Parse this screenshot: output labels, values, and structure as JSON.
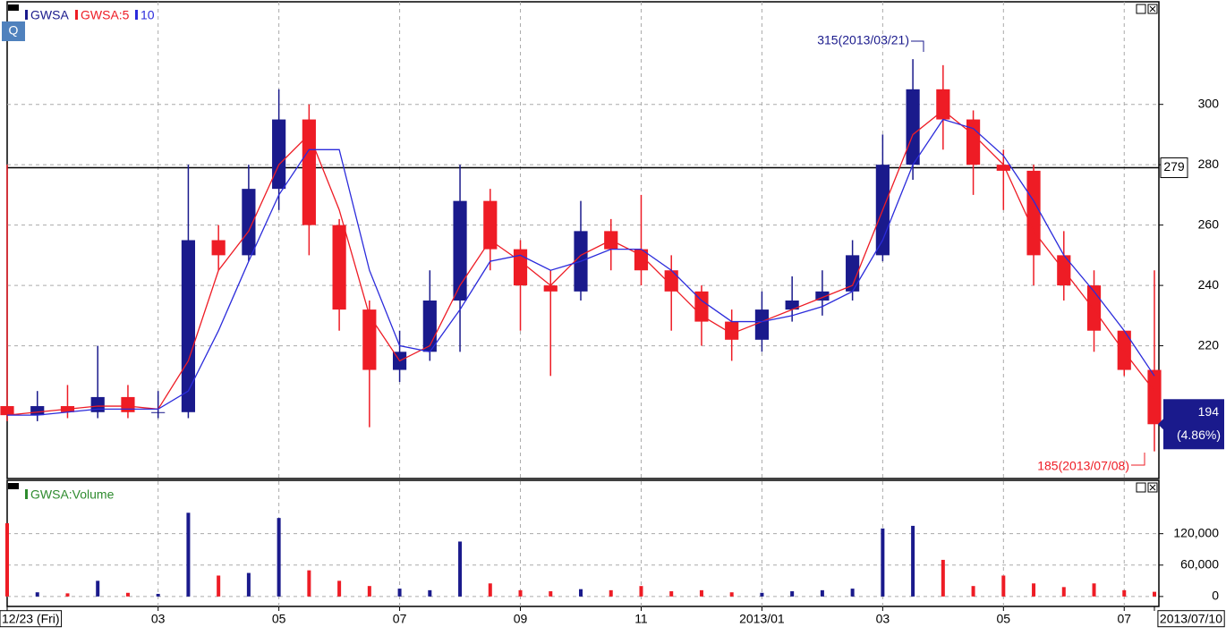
{
  "chart_data": [
    {
      "type": "candlestick",
      "name": "GWSA",
      "up_color": "#1a1a8c",
      "down_color": "#ee1c25",
      "categories": [
        "12/23 (Fri)",
        null,
        null,
        null,
        null,
        "03",
        null,
        null,
        null,
        "05",
        null,
        null,
        null,
        "07",
        null,
        null,
        null,
        "09",
        null,
        null,
        null,
        "11",
        null,
        null,
        null,
        "2013/01",
        null,
        null,
        null,
        "03",
        null,
        null,
        null,
        "05",
        null,
        null,
        null,
        "07",
        "2013/07/10"
      ],
      "open": [
        200,
        197,
        200,
        198,
        203,
        198,
        198,
        255,
        250,
        272,
        295,
        260,
        232,
        212,
        218,
        235,
        268,
        252,
        240,
        238,
        258,
        252,
        245,
        238,
        228,
        222,
        232,
        235,
        238,
        250,
        280,
        305,
        295,
        280,
        278,
        250,
        240,
        225,
        212
      ],
      "high": [
        280,
        205,
        207,
        220,
        207,
        205,
        280,
        260,
        280,
        305,
        300,
        262,
        235,
        225,
        245,
        280,
        272,
        255,
        245,
        268,
        262,
        270,
        250,
        240,
        232,
        238,
        243,
        245,
        255,
        290,
        315,
        313,
        298,
        285,
        280,
        258,
        245,
        225,
        245
      ],
      "low": [
        195,
        195,
        196,
        196,
        196,
        196,
        196,
        245,
        248,
        265,
        250,
        225,
        193,
        208,
        215,
        218,
        245,
        225,
        210,
        235,
        245,
        240,
        225,
        220,
        215,
        218,
        228,
        230,
        235,
        248,
        275,
        285,
        270,
        265,
        240,
        235,
        218,
        210,
        185
      ],
      "close": [
        197,
        200,
        198,
        203,
        198,
        198,
        255,
        250,
        272,
        295,
        260,
        232,
        212,
        218,
        235,
        268,
        252,
        240,
        238,
        258,
        252,
        245,
        238,
        228,
        222,
        232,
        235,
        238,
        250,
        280,
        305,
        295,
        280,
        278,
        250,
        240,
        225,
        212,
        194
      ],
      "series": [
        {
          "name": "GWSA:5",
          "color": "#ee1c25",
          "values": [
            197,
            198,
            199,
            200,
            200,
            199,
            215,
            245,
            258,
            280,
            290,
            265,
            230,
            215,
            220,
            240,
            255,
            248,
            240,
            250,
            255,
            250,
            240,
            230,
            224,
            228,
            232,
            236,
            240,
            265,
            290,
            298,
            290,
            280,
            258,
            245,
            232,
            218,
            205
          ]
        },
        {
          "name": "10",
          "color": "#2b2bdb",
          "values": [
            197,
            197,
            198,
            199,
            199,
            199,
            205,
            225,
            248,
            270,
            285,
            285,
            245,
            220,
            218,
            232,
            248,
            250,
            245,
            248,
            252,
            252,
            245,
            235,
            228,
            228,
            230,
            233,
            238,
            255,
            280,
            295,
            292,
            283,
            268,
            250,
            238,
            225,
            210
          ]
        }
      ],
      "ylim": [
        176,
        334
      ],
      "yticks": [
        220,
        240,
        260,
        280,
        300
      ],
      "grid": true,
      "hline": 279,
      "last": 194,
      "change": "(4.86%)",
      "annotations": [
        "315(2013/03/21)",
        "185(2013/07/08)"
      ],
      "button": "Q"
    },
    {
      "type": "bar",
      "name": "GWSA:Volume",
      "values": [
        140000,
        8000,
        6000,
        30000,
        7000,
        5000,
        160000,
        40000,
        45000,
        150000,
        50000,
        30000,
        20000,
        15000,
        12000,
        105000,
        25000,
        12000,
        10000,
        14000,
        12000,
        20000,
        10000,
        12000,
        8000,
        7000,
        10000,
        12000,
        15000,
        130000,
        135000,
        70000,
        20000,
        40000,
        25000,
        18000,
        25000,
        12000,
        9000
      ],
      "ylim": [
        -19000,
        222000
      ],
      "yticks": [
        0,
        {
          "value": 60000,
          "label": "60,000"
        },
        {
          "value": 120000,
          "label": "120,000"
        }
      ],
      "grid": true
    }
  ]
}
